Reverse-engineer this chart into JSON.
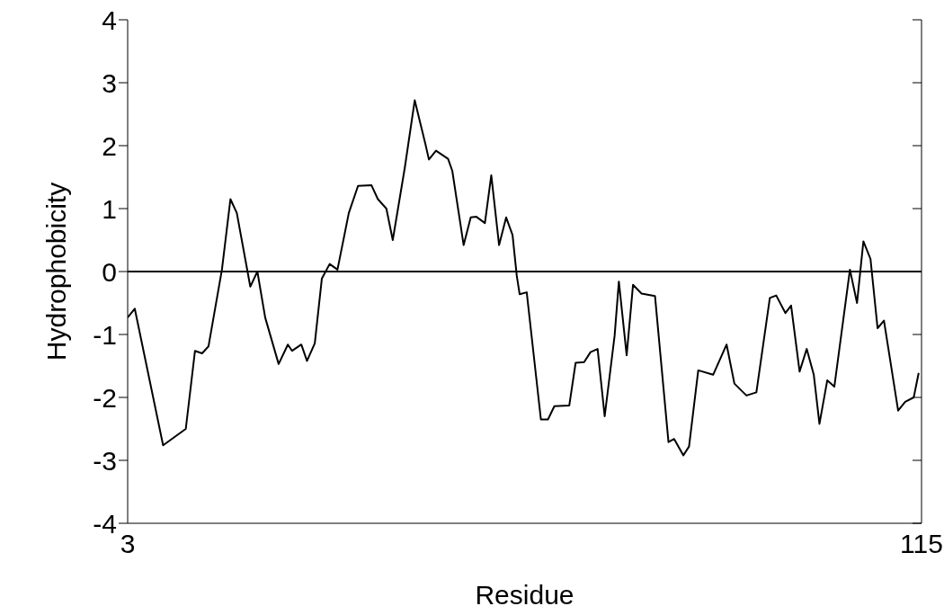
{
  "chart_data": {
    "type": "line",
    "xlabel": "Residue",
    "ylabel": "Hydrophobicity",
    "x": [
      3,
      4,
      8,
      11.2,
      12.5,
      13.5,
      14.4,
      16.3,
      17.5,
      18.4,
      20.3,
      21.3,
      22.4,
      24.3,
      25.6,
      26.2,
      27.5,
      28.3,
      29.4,
      30.4,
      31.5,
      32.6,
      34.2,
      35.5,
      37.4,
      38.3,
      39.5,
      40.4,
      42.1,
      43.5,
      45,
      45.5,
      46.5,
      48.2,
      48.8,
      50.4,
      51.4,
      52.2,
      53.4,
      54.3,
      55.4,
      56.4,
      57.3,
      57.9,
      58.3,
      59.3,
      61.3,
      62.3,
      63.2,
      65.3,
      66.2,
      67.4,
      68.3,
      69.3,
      70.3,
      71.7,
      72.3,
      73.4,
      74.3,
      75.5,
      77.4,
      79.3,
      80.1,
      81.4,
      82.2,
      83.5,
      85.6,
      87.5,
      88.6,
      90.3,
      91.7,
      93.6,
      94.5,
      95.8,
      96.6,
      97.8,
      98.8,
      99.8,
      100.6,
      101.7,
      102.7,
      104.9,
      105.9,
      106.8,
      107.8,
      108.8,
      109.7,
      111.7,
      112.7,
      113.9,
      114.6
    ],
    "series": [
      {
        "color": "#000000",
        "values": [
          -0.73,
          -0.59,
          -2.76,
          -2.5,
          -1.26,
          -1.3,
          -1.19,
          0.03,
          1.15,
          0.93,
          -0.24,
          0,
          -0.73,
          -1.47,
          -1.16,
          -1.26,
          -1.16,
          -1.42,
          -1.14,
          -0.11,
          0.12,
          0.03,
          0.93,
          1.36,
          1.37,
          1.15,
          1,
          0.5,
          1.65,
          2.72,
          2.03,
          1.78,
          1.92,
          1.79,
          1.6,
          0.42,
          0.86,
          0.87,
          0.77,
          1.53,
          0.42,
          0.86,
          0.58,
          -0.07,
          -0.36,
          -0.33,
          -2.35,
          -2.35,
          -2.14,
          -2.13,
          -1.45,
          -1.44,
          -1.28,
          -1.23,
          -2.3,
          -1.02,
          -0.16,
          -1.33,
          -0.21,
          -0.35,
          -0.39,
          -2.71,
          -2.66,
          -2.92,
          -2.78,
          -1.57,
          -1.64,
          -1.16,
          -1.78,
          -1.97,
          -1.92,
          -0.42,
          -0.38,
          -0.66,
          -0.54,
          -1.59,
          -1.23,
          -1.64,
          -2.42,
          -1.73,
          -1.83,
          0.03,
          -0.5,
          0.48,
          0.2,
          -0.9,
          -0.78,
          -2.21,
          -2.07,
          -2,
          -1.61
        ]
      }
    ],
    "xlim": [
      3,
      115
    ],
    "xticks": [
      3,
      115
    ],
    "ylim": [
      -4,
      4
    ],
    "yticks": [
      -4,
      -3,
      -2,
      -1,
      0,
      1,
      2,
      3,
      4
    ],
    "ref_lines": [
      {
        "axis": "y",
        "value": 0,
        "color": "#000000"
      }
    ],
    "grid": false,
    "legend": false,
    "marker": "none",
    "line_style": "solid"
  }
}
